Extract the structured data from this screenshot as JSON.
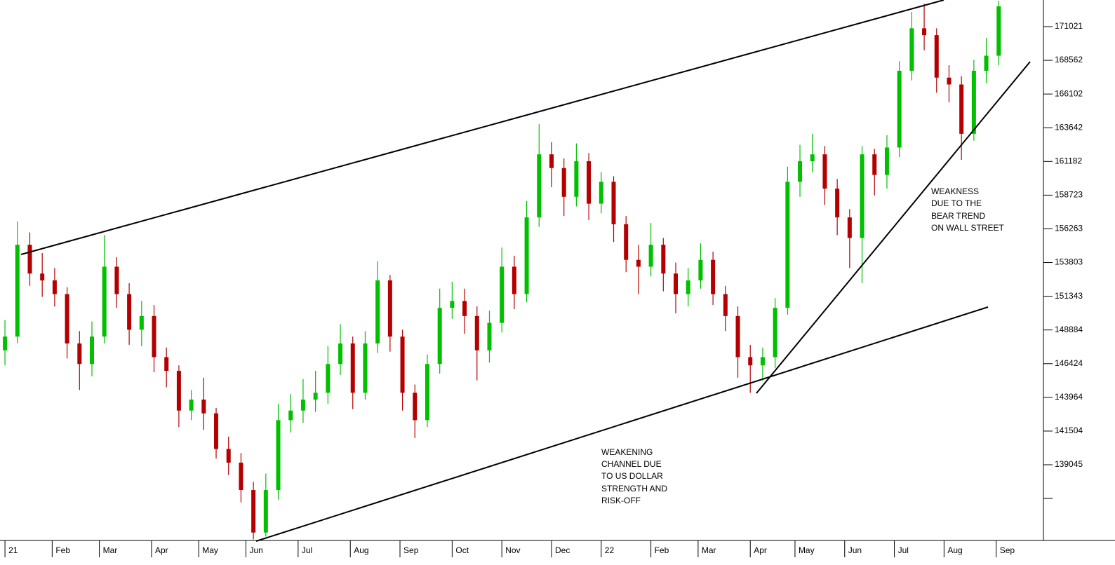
{
  "chart_data": {
    "type": "candlestick",
    "x": [
      2,
      7,
      12,
      17,
      22,
      27,
      32,
      37,
      42,
      47,
      52,
      57,
      62,
      67,
      72,
      77,
      82,
      87,
      92,
      97,
      102,
      107,
      112,
      117,
      122,
      127,
      132,
      137,
      142,
      147,
      152,
      157,
      162,
      167,
      172,
      177,
      182,
      187,
      192,
      197,
      202,
      207,
      212,
      217,
      222,
      227,
      232,
      237,
      242,
      247,
      252,
      257,
      262,
      267,
      272,
      277,
      282,
      287,
      292,
      297,
      302,
      307,
      312,
      317,
      322,
      327,
      332,
      337,
      342,
      347,
      352,
      357,
      362,
      367,
      372,
      377,
      382,
      387,
      392,
      397,
      402
    ],
    "open": [
      147400,
      148400,
      155100,
      153000,
      152500,
      151500,
      147900,
      146400,
      148400,
      153500,
      151500,
      148900,
      149900,
      146900,
      145900,
      143000,
      143800,
      142800,
      140200,
      139200,
      137200,
      134100,
      137200,
      142300,
      143000,
      143800,
      144300,
      146400,
      147900,
      144300,
      147900,
      152500,
      148400,
      144300,
      142300,
      146400,
      150500,
      151000,
      149900,
      147400,
      149400,
      153500,
      151500,
      157100,
      161700,
      160700,
      158600,
      161200,
      158100,
      159700,
      156600,
      154000,
      153500,
      155100,
      153000,
      151500,
      152500,
      154000,
      151500,
      149900,
      146900,
      146300,
      146900,
      150500,
      159700,
      161200,
      161700,
      159200,
      157100,
      155600,
      161700,
      160200,
      162200,
      167800,
      170900,
      170400,
      167300,
      166800,
      163200,
      167800,
      168900
    ],
    "high": [
      149600,
      156800,
      156000,
      154500,
      153400,
      152000,
      148800,
      149500,
      155800,
      154200,
      152300,
      151000,
      150700,
      147600,
      146300,
      144500,
      145400,
      143200,
      141100,
      139900,
      137800,
      138400,
      143500,
      144200,
      145300,
      145900,
      147700,
      149300,
      148400,
      148800,
      153900,
      152900,
      148900,
      144900,
      147100,
      151900,
      152400,
      151900,
      150600,
      150300,
      154900,
      154300,
      158300,
      163900,
      162600,
      161400,
      162500,
      161800,
      160400,
      160100,
      157200,
      155100,
      156700,
      155600,
      153800,
      153400,
      155200,
      154600,
      152100,
      150600,
      147800,
      147600,
      151200,
      160800,
      162400,
      163200,
      162300,
      159900,
      157700,
      162300,
      162100,
      163100,
      168500,
      172100,
      172700,
      170900,
      168200,
      167400,
      168600,
      170200,
      172900
    ],
    "low": [
      146300,
      147900,
      152100,
      151300,
      150600,
      146800,
      144500,
      145500,
      147900,
      150500,
      147800,
      147700,
      145800,
      144700,
      141800,
      142300,
      141600,
      139500,
      138300,
      136300,
      133600,
      133800,
      136500,
      141400,
      142100,
      142900,
      143500,
      145600,
      143100,
      143800,
      147200,
      147300,
      143000,
      141000,
      141800,
      145700,
      149700,
      148600,
      145200,
      146500,
      148700,
      150400,
      150900,
      156400,
      159300,
      157200,
      157900,
      156900,
      157400,
      155300,
      153100,
      151500,
      152800,
      151700,
      150100,
      150600,
      151900,
      150700,
      148800,
      145400,
      144300,
      145200,
      146100,
      150000,
      158600,
      160400,
      158000,
      155800,
      153400,
      152300,
      158700,
      159200,
      161500,
      167100,
      169300,
      166200,
      165500,
      161300,
      162700,
      166900,
      168200
    ],
    "close": [
      148400,
      155100,
      153000,
      152500,
      151500,
      147900,
      146400,
      148400,
      153500,
      151500,
      148900,
      149900,
      146900,
      145900,
      143000,
      143800,
      142800,
      140200,
      139200,
      137200,
      134100,
      137200,
      142300,
      143000,
      143800,
      144300,
      146400,
      147900,
      144300,
      147900,
      152500,
      148400,
      144300,
      142300,
      146400,
      150500,
      151000,
      149900,
      147400,
      149400,
      153500,
      151500,
      157100,
      161700,
      160700,
      158600,
      161200,
      158100,
      159700,
      156600,
      154000,
      153500,
      155100,
      153000,
      151500,
      152500,
      154000,
      151500,
      149900,
      146900,
      146300,
      146900,
      150500,
      159700,
      161200,
      161700,
      159200,
      157100,
      155600,
      161700,
      160200,
      162200,
      167800,
      170900,
      170400,
      167300,
      166800,
      163200,
      167800,
      168900,
      172500
    ],
    "up_color": "#00c000",
    "down_color": "#b40000",
    "xlim": [
      0,
      420
    ],
    "xticks": [
      {
        "value": 2,
        "label": "21"
      },
      {
        "value": 21,
        "label": "Feb"
      },
      {
        "value": 40,
        "label": "Mar"
      },
      {
        "value": 61,
        "label": "Apr"
      },
      {
        "value": 80,
        "label": "May"
      },
      {
        "value": 99,
        "label": "Jun"
      },
      {
        "value": 120,
        "label": "Jul"
      },
      {
        "value": 141,
        "label": "Aug"
      },
      {
        "value": 161,
        "label": "Sep"
      },
      {
        "value": 182,
        "label": "Oct"
      },
      {
        "value": 202,
        "label": "Nov"
      },
      {
        "value": 222,
        "label": "Dec"
      },
      {
        "value": 242,
        "label": "22"
      },
      {
        "value": 262,
        "label": "Feb"
      },
      {
        "value": 281,
        "label": "Mar"
      },
      {
        "value": 302,
        "label": "Apr"
      },
      {
        "value": 320,
        "label": "May"
      },
      {
        "value": 340,
        "label": "Jun"
      },
      {
        "value": 360,
        "label": "Jul"
      },
      {
        "value": 380,
        "label": "Aug"
      },
      {
        "value": 401,
        "label": "Sep"
      }
    ],
    "ylim": [
      133520,
      172965
    ],
    "yticks": [
      {
        "value": 136585,
        "label": null
      },
      139045,
      141504,
      143964,
      146424,
      148884,
      151343,
      153803,
      156263,
      158723,
      161182,
      163642,
      166102,
      168562,
      171021
    ],
    "annotations": [
      {
        "lines": [
          "WEAKENING",
          "CHANNEL DUE",
          "TO US DOLLAR",
          "STRENGTH AND",
          "RISK-OFF"
        ]
      },
      {
        "lines": [
          "WEAKNESS",
          "DUE TO THE",
          "BEAR TREND",
          "ON WALL STREET"
        ]
      }
    ],
    "annotation_color": "#2b2bff"
  }
}
